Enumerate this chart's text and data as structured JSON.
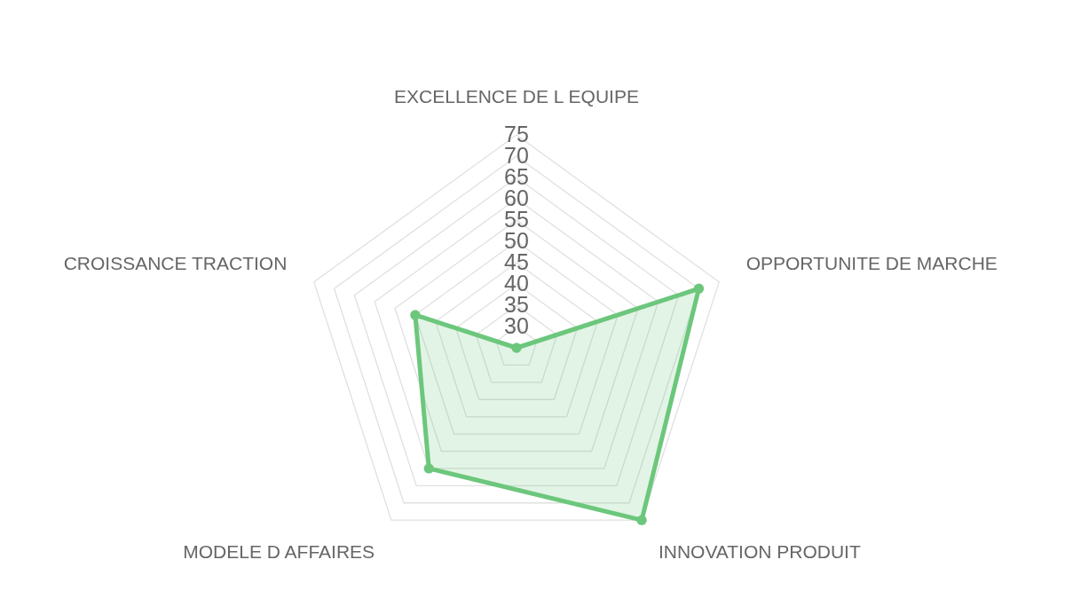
{
  "chart_data": {
    "type": "radar",
    "categories": [
      "EXCELLENCE DE L EQUIPE",
      "OPPORTUNITE DE MARCHE",
      "INNOVATION PRODUIT",
      "MODELE D AFFAIRES",
      "CROISSANCE TRACTION"
    ],
    "series": [
      {
        "color": "#6cc77c",
        "values": [
          25,
          70,
          75,
          60,
          50
        ]
      }
    ],
    "ylim": [
      25,
      75
    ],
    "yticks": [
      30,
      35,
      40,
      45,
      50,
      55,
      60,
      65,
      70,
      75
    ],
    "grid": true,
    "marker": "circle"
  }
}
